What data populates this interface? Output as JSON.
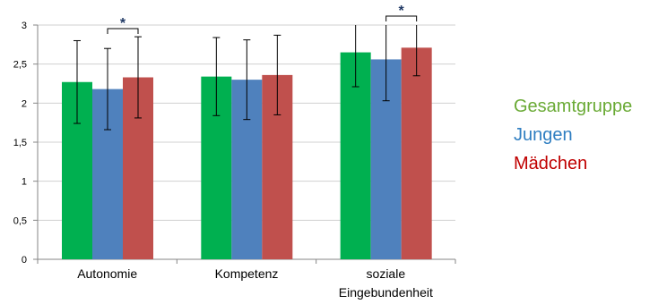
{
  "chart_data": {
    "type": "bar",
    "title": "",
    "xlabel": "",
    "ylabel": "",
    "ylim": [
      0,
      3
    ],
    "yticks": [
      "0",
      "0,5",
      "1",
      "1,5",
      "2",
      "2,5",
      "3"
    ],
    "grid": true,
    "legend_position": "right",
    "categories": [
      [
        "Autonomie"
      ],
      [
        "Kompetenz"
      ],
      [
        "soziale",
        "Eingebundenheit"
      ]
    ],
    "series": [
      {
        "name": "Gesamtgruppe",
        "color": "#00b050",
        "values": [
          2.27,
          2.34,
          2.65
        ],
        "errors": [
          0.53,
          0.5,
          0.44
        ]
      },
      {
        "name": "Jungen",
        "color": "#4f81bd",
        "values": [
          2.18,
          2.3,
          2.56
        ],
        "errors": [
          0.52,
          0.51,
          0.53
        ]
      },
      {
        "name": "Mädchen",
        "color": "#c0504d",
        "values": [
          2.33,
          2.36,
          2.71
        ],
        "errors": [
          0.52,
          0.51,
          0.36
        ]
      }
    ],
    "significance": [
      {
        "category_index": 0,
        "from_series": 1,
        "to_series": 2,
        "label": "*"
      },
      {
        "category_index": 2,
        "from_series": 1,
        "to_series": 2,
        "label": "*"
      }
    ]
  },
  "legend": {
    "items": [
      {
        "label": "Gesamtgruppe",
        "color": "#6aaa35"
      },
      {
        "label": "Jungen",
        "color": "#2f7ec1"
      },
      {
        "label": "Mädchen",
        "color": "#c00000"
      }
    ]
  }
}
